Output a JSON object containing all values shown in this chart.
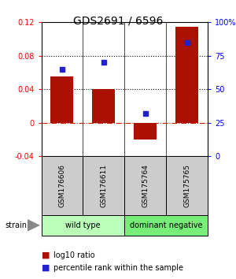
{
  "title": "GDS2691 / 6596",
  "samples": [
    "GSM176606",
    "GSM176611",
    "GSM175764",
    "GSM175765"
  ],
  "log10_ratio": [
    0.055,
    0.04,
    -0.02,
    0.115
  ],
  "percentile_rank_pct": [
    65,
    70,
    32,
    85
  ],
  "ylim_left": [
    -0.04,
    0.12
  ],
  "ylim_right": [
    0,
    100
  ],
  "yticks_left": [
    -0.04,
    0,
    0.04,
    0.08,
    0.12
  ],
  "yticks_right": [
    0,
    25,
    50,
    75,
    100
  ],
  "hlines": [
    0.08,
    0.04
  ],
  "bar_color": "#aa1100",
  "dot_color": "#2222cc",
  "zero_line_color": "#cc2200",
  "sample_box_color": "#cccccc",
  "groups": [
    {
      "label": "wild type",
      "indices": [
        0,
        1
      ],
      "color": "#bbffbb"
    },
    {
      "label": "dominant negative",
      "indices": [
        2,
        3
      ],
      "color": "#77ee77"
    }
  ],
  "strain_label": "strain",
  "legend_bar_label": "log10 ratio",
  "legend_dot_label": "percentile rank within the sample",
  "title_fontsize": 10,
  "tick_fontsize": 7,
  "sample_fontsize": 6.5,
  "group_fontsize": 7,
  "legend_fontsize": 7,
  "strain_fontsize": 7
}
